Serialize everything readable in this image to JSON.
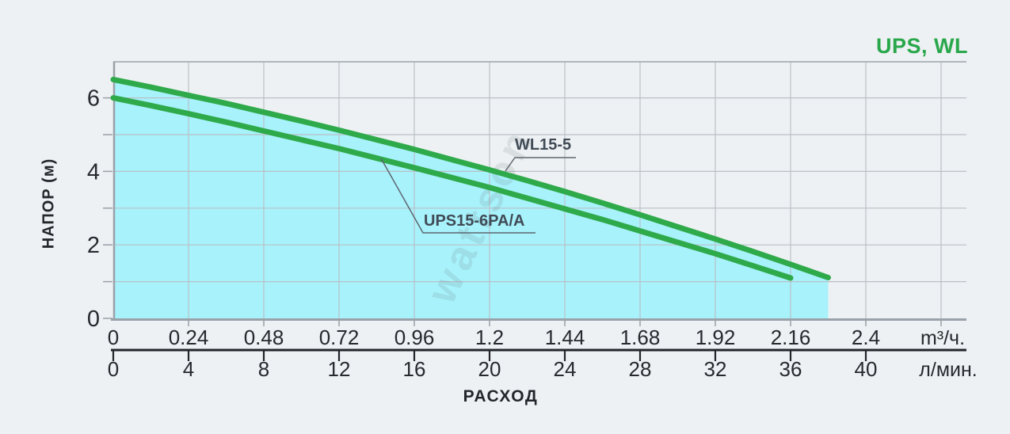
{
  "header": {
    "title": "UPS, WL"
  },
  "watermark": {
    "text": "wattson"
  },
  "colors": {
    "background": "#eef1f3",
    "fill": "#a8f2fb",
    "curve_green": "#2faa4b",
    "grid": "#b9c0c7",
    "axis_gray": "#98a0a8",
    "border_gray": "#99a1a9",
    "axis_black": "#22262b",
    "title_green": "#29a74b",
    "tick_text": "#26292e",
    "label_slate": "#404b56",
    "leader": "#5d6670"
  },
  "chart_data": {
    "type": "line",
    "title": "UPS, WL",
    "xlabel": "РАСХОД",
    "ylabel": "НАПОР (м)",
    "grid": true,
    "legend": "inline-labels",
    "xlim_m3h": [
      0,
      2.64
    ],
    "ylim": [
      0,
      7
    ],
    "x_axis_rows": [
      {
        "name": "m3h",
        "unit": "m³/ч.",
        "tick_values": [
          0,
          0.24,
          0.48,
          0.72,
          0.96,
          1.2,
          1.44,
          1.68,
          1.92,
          2.16,
          2.4
        ],
        "tick_labels": [
          "0",
          "0.24",
          "0.48",
          "0.72",
          "0.96",
          "1.2",
          "1.44",
          "1.68",
          "1.92",
          "2.16",
          "2.4"
        ]
      },
      {
        "name": "lmin",
        "unit": "л/мин.",
        "tick_values": [
          0,
          0.24,
          0.48,
          0.72,
          0.96,
          1.2,
          1.44,
          1.68,
          1.92,
          2.16,
          2.4
        ],
        "tick_labels": [
          "0",
          "4",
          "8",
          "12",
          "16",
          "20",
          "24",
          "28",
          "32",
          "36",
          "40"
        ]
      }
    ],
    "y_axis": {
      "labeled_ticks": [
        0,
        2,
        4,
        6
      ],
      "labeled_tick_labels": [
        "0",
        "2",
        "4",
        "6"
      ],
      "minor_tick_step": 1
    },
    "series": [
      {
        "name": "WL15-5",
        "color": "#2faa4b",
        "x": [
          0,
          0.12,
          0.24,
          0.36,
          0.48,
          0.6,
          0.72,
          0.84,
          0.96,
          1.08,
          1.2,
          1.32,
          1.44,
          1.56,
          1.68,
          1.8,
          1.92,
          2.04,
          2.16,
          2.28
        ],
        "y": [
          6.5,
          6.29,
          6.07,
          5.85,
          5.61,
          5.37,
          5.12,
          4.86,
          4.6,
          4.32,
          4.04,
          3.75,
          3.45,
          3.14,
          2.82,
          2.49,
          2.16,
          1.82,
          1.47,
          1.11
        ]
      },
      {
        "name": "UPS15-6PA/A",
        "color": "#2faa4b",
        "x": [
          0,
          0.12,
          0.24,
          0.36,
          0.48,
          0.6,
          0.72,
          0.84,
          0.96,
          1.08,
          1.2,
          1.32,
          1.44,
          1.56,
          1.68,
          1.8,
          1.92,
          2.04,
          2.16
        ],
        "y": [
          6,
          5.79,
          5.57,
          5.34,
          5.1,
          4.86,
          4.62,
          4.36,
          4.1,
          3.83,
          3.56,
          3.27,
          2.98,
          2.69,
          2.38,
          2.07,
          1.76,
          1.43,
          1.1
        ]
      }
    ],
    "fill_under_series": "WL15-5",
    "fill_color": "#a8f2fb"
  }
}
